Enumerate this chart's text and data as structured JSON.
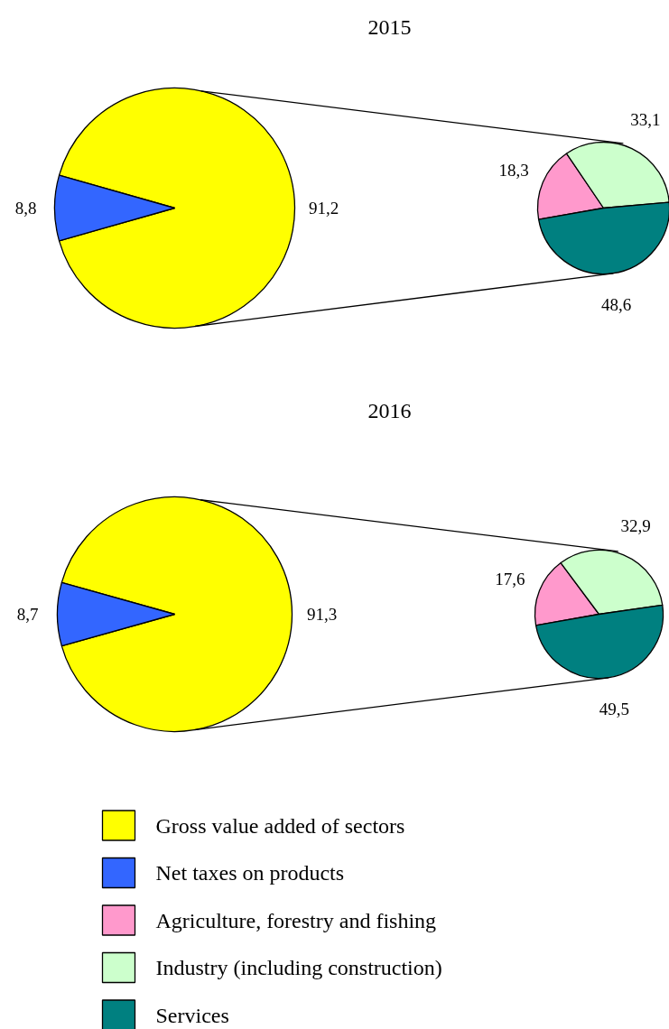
{
  "chart_data": [
    {
      "type": "pie",
      "title": "2015",
      "categories": [
        "Gross value added of sectors",
        "Net taxes on products"
      ],
      "values": [
        91.2,
        8.8
      ],
      "value_labels": [
        "91,2",
        "8,8"
      ],
      "colors": [
        "#ffff00",
        "#3366ff"
      ],
      "legend": "bottom"
    },
    {
      "type": "pie",
      "categories": [
        "Agriculture, forestry and fishing",
        "Industry (including construction)",
        "Services"
      ],
      "values": [
        18.3,
        33.1,
        48.6
      ],
      "value_labels": [
        "18,3",
        "33,1",
        "48,6"
      ],
      "colors": [
        "#ff99cc",
        "#ccffcc",
        "#008080"
      ],
      "legend": "bottom"
    },
    {
      "type": "pie",
      "title": "2016",
      "values": [
        91.3,
        8.7
      ],
      "value_labels": [
        "91,3",
        "8,7"
      ],
      "colors": [
        "#ffff00",
        "#3366ff"
      ]
    },
    {
      "type": "pie",
      "values": [
        17.6,
        32.9,
        49.5
      ],
      "value_labels": [
        "17,6",
        "32,9",
        "49,5"
      ],
      "colors": [
        "#ff99cc",
        "#ccffcc",
        "#008080"
      ]
    }
  ]
}
